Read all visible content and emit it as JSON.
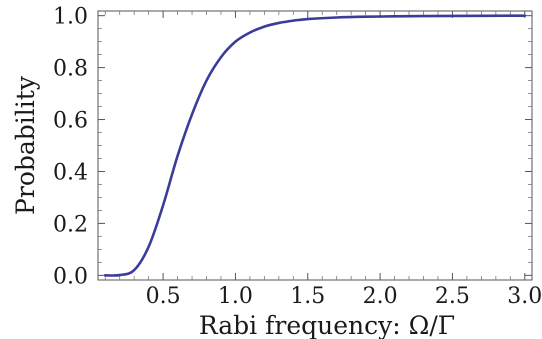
{
  "chart_data": {
    "type": "line",
    "title": "",
    "xlabel": "Rabi frequency: Ω/Γ",
    "ylabel": "Probability",
    "xlim": [
      0.05,
      3.05
    ],
    "ylim": [
      0.0,
      1.0
    ],
    "x_ticks": [
      0.5,
      1.0,
      1.5,
      2.0,
      2.5,
      3.0
    ],
    "x_tick_labels": [
      "0.5",
      "1.0",
      "1.5",
      "2.0",
      "2.5",
      "3.0"
    ],
    "y_ticks": [
      0.0,
      0.2,
      0.4,
      0.6,
      0.8,
      1.0
    ],
    "y_tick_labels": [
      "0.0",
      "0.2",
      "0.4",
      "0.6",
      "0.8",
      "1.0"
    ],
    "grid": false,
    "frame": "box",
    "series": [
      {
        "color": "#3b3b9a",
        "x": [
          0.1,
          0.2,
          0.3,
          0.4,
          0.5,
          0.6,
          0.7,
          0.8,
          0.9,
          1.0,
          1.1,
          1.2,
          1.3,
          1.4,
          1.5,
          1.7,
          1.9,
          2.2,
          2.5,
          3.0
        ],
        "y": [
          0.0,
          0.001,
          0.02,
          0.11,
          0.27,
          0.46,
          0.62,
          0.75,
          0.84,
          0.9,
          0.935,
          0.958,
          0.972,
          0.981,
          0.987,
          0.993,
          0.996,
          0.998,
          0.999,
          1.0
        ]
      }
    ]
  }
}
